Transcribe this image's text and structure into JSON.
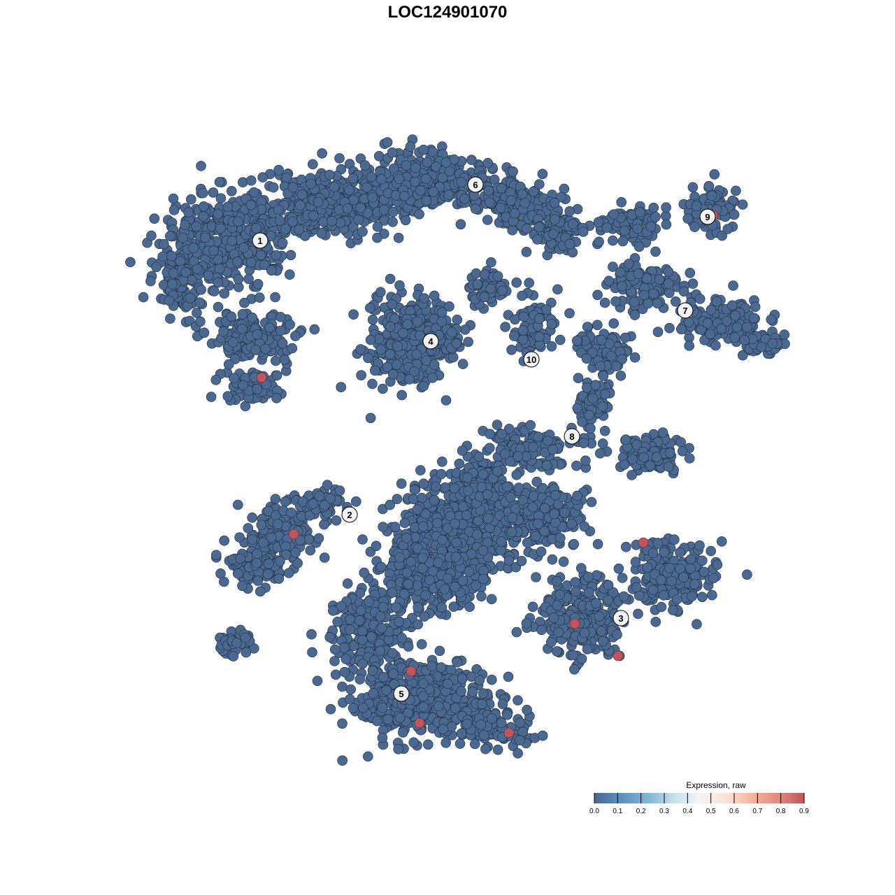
{
  "chart_data": {
    "type": "scatter",
    "title": "LOC124901070",
    "xlabel": "",
    "ylabel": "",
    "grid": false,
    "axes_visible": false,
    "point_color_default": "#4a6890",
    "point_stroke": "#1f2d3d",
    "clusters": [
      {
        "label": "1",
        "x": -6.7,
        "y": 7.4
      },
      {
        "label": "2",
        "x": -3.5,
        "y": -2.4
      },
      {
        "label": "3",
        "x": 6.2,
        "y": -6.1
      },
      {
        "label": "4",
        "x": -0.6,
        "y": 3.8
      },
      {
        "label": "5",
        "x": -1.65,
        "y": -8.8
      },
      {
        "label": "6",
        "x": 1.0,
        "y": 9.4
      },
      {
        "label": "7",
        "x": 8.5,
        "y": 4.9
      },
      {
        "label": "8",
        "x": 4.45,
        "y": 0.4
      },
      {
        "label": "9",
        "x": 9.3,
        "y": 8.25
      },
      {
        "label": "10",
        "x": 3.0,
        "y": 3.15
      }
    ],
    "expressing_points": [
      {
        "x": -6.65,
        "y": 2.5,
        "value": 0.9
      },
      {
        "x": -5.5,
        "y": -3.1,
        "value": 0.9
      },
      {
        "x": 7.0,
        "y": -3.4,
        "value": 0.9
      },
      {
        "x": 4.55,
        "y": -6.3,
        "value": 0.9
      },
      {
        "x": 6.1,
        "y": -7.45,
        "value": 0.9
      },
      {
        "x": -1.3,
        "y": -8.0,
        "value": 0.9
      },
      {
        "x": -1.0,
        "y": -9.85,
        "value": 0.9
      },
      {
        "x": 2.2,
        "y": -10.2,
        "value": 0.9
      },
      {
        "x": 9.5,
        "y": 8.3,
        "value": 0.9
      }
    ],
    "legend": {
      "title": "Expression, raw",
      "placement": "bottom-right",
      "ticks": [
        "0.0",
        "0.1",
        "0.2",
        "0.3",
        "0.4",
        "0.5",
        "0.6",
        "0.7",
        "0.8",
        "0.9"
      ],
      "range": [
        0,
        0.9
      ],
      "colors": [
        "#4a6890",
        "#5b8fc0",
        "#7fb3d5",
        "#c5dfec",
        "#f4f4f4",
        "#fbe3d8",
        "#f4b59c",
        "#e48a7f",
        "#c0545f"
      ]
    }
  }
}
